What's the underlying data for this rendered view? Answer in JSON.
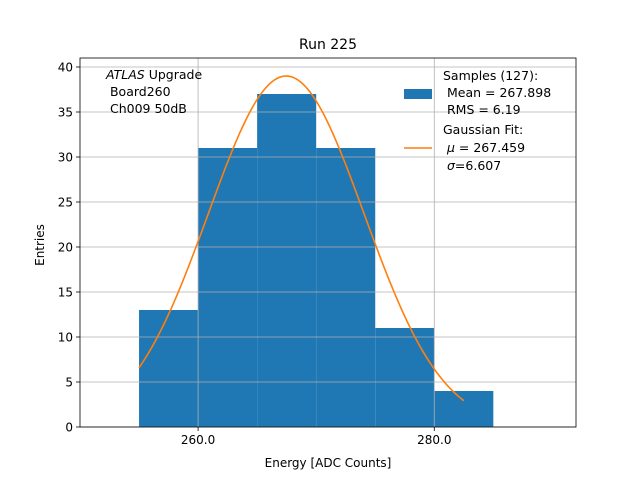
{
  "chart_data": {
    "type": "bar",
    "title": "Run 225",
    "xlabel": "Energy [ADC Counts]",
    "ylabel": "Entries",
    "xlim": [
      250,
      292
    ],
    "ylim": [
      0,
      41
    ],
    "grid": true,
    "x_ticks": [
      260,
      280
    ],
    "x_tick_labels": [
      "260.0",
      "280.0"
    ],
    "y_ticks": [
      0,
      5,
      10,
      15,
      20,
      25,
      30,
      35,
      40
    ],
    "y_tick_labels": [
      "0",
      "5",
      "10",
      "15",
      "20",
      "25",
      "30",
      "35",
      "40"
    ],
    "histogram": {
      "bin_edges": [
        255,
        260,
        265,
        270,
        275,
        280,
        285
      ],
      "counts": [
        13,
        31,
        37,
        31,
        11,
        4
      ],
      "color": "#1f77b4"
    },
    "fit": {
      "type": "gaussian",
      "amplitude": 39.0,
      "mu": 267.459,
      "sigma": 6.607,
      "x_range": [
        255,
        282.5
      ],
      "color": "#ff7f0e"
    },
    "annotation": {
      "experiment": "ATLAS",
      "experiment_suffix": " Upgrade",
      "board": "Board260",
      "channel": "Ch009 50dB"
    },
    "legend": {
      "placement": "top-right",
      "samples_title": "Samples (127):",
      "samples_mean": " Mean = 267.898",
      "samples_rms": " RMS = 6.19",
      "fit_title": "Gaussian Fit:",
      "fit_mu_symbol": "μ",
      "fit_mu_value": " = 267.459",
      "fit_sigma_symbol": "σ",
      "fit_sigma_value": "=6.607"
    }
  }
}
